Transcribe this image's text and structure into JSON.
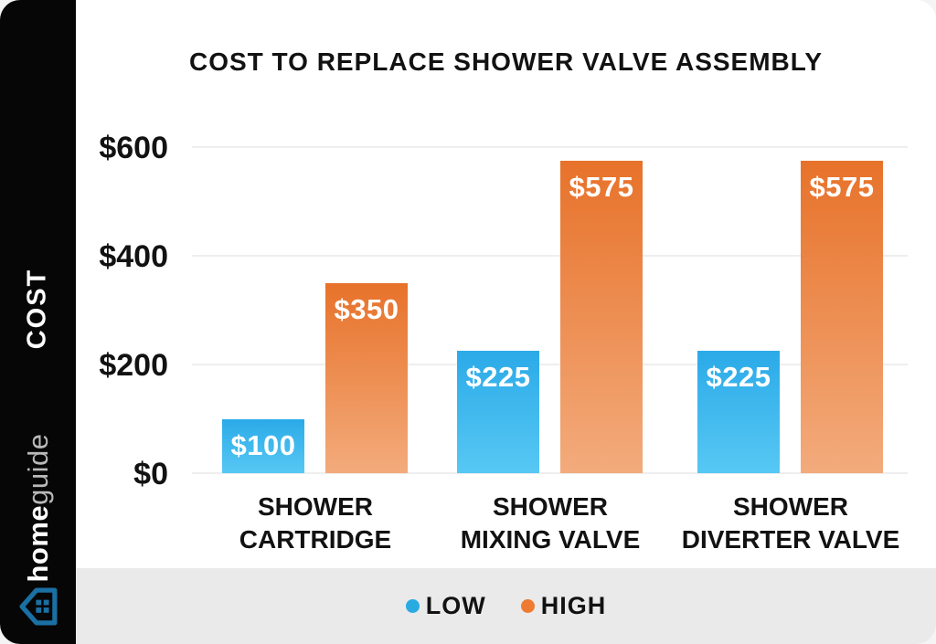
{
  "sidebar": {
    "ylabel": "COST",
    "brand_bold": "home",
    "brand_light": "guide",
    "logo_color": "#1a6fa3"
  },
  "chart_data": {
    "type": "bar",
    "title": "COST TO REPLACE SHOWER VALVE ASSEMBLY",
    "categories": [
      "SHOWER CARTRIDGE",
      "SHOWER MIXING VALVE",
      "SHOWER DIVERTER VALVE"
    ],
    "category_lines": [
      [
        "SHOWER",
        "CARTRIDGE"
      ],
      [
        "SHOWER",
        "MIXING VALVE"
      ],
      [
        "SHOWER",
        "DIVERTER VALVE"
      ]
    ],
    "series": [
      {
        "name": "LOW",
        "values": [
          100,
          225,
          225
        ],
        "labels": [
          "$100",
          "$225",
          "$225"
        ],
        "color_top": "#2baae8",
        "color_bottom": "#57c8f4",
        "legend_color": "#29abe2"
      },
      {
        "name": "HIGH",
        "values": [
          350,
          575,
          575
        ],
        "labels": [
          "$350",
          "$575",
          "$575"
        ],
        "color_top": "#e7722a",
        "color_bottom": "#f3ab7c",
        "legend_color": "#ee7b31"
      }
    ],
    "ylabel": "COST",
    "ylim": [
      0,
      600
    ],
    "y_ticks": [
      {
        "value": 0,
        "label": "$0"
      },
      {
        "value": 200,
        "label": "$200"
      },
      {
        "value": 400,
        "label": "$400"
      },
      {
        "value": 600,
        "label": "$600"
      }
    ],
    "grid": true,
    "legend_position": "bottom"
  }
}
